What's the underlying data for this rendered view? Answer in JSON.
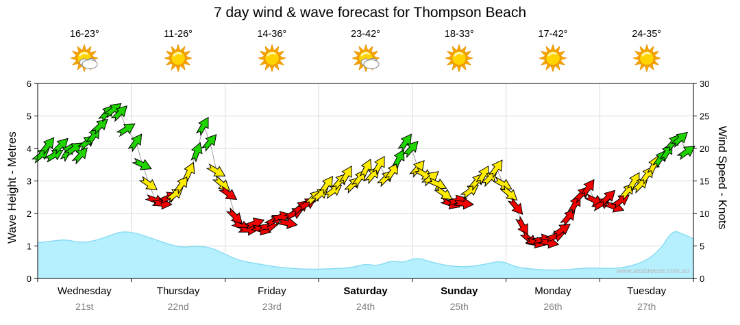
{
  "title": "7 day wind & wave forecast for Thompson Beach",
  "watermark": "www.seabreeze.com.au",
  "days": [
    {
      "name": "Wednesday",
      "date": "21st",
      "temp": "16-23°",
      "icon": "partly-cloudy",
      "bold": false
    },
    {
      "name": "Thursday",
      "date": "22nd",
      "temp": "11-26°",
      "icon": "sunny",
      "bold": false
    },
    {
      "name": "Friday",
      "date": "23rd",
      "temp": "14-36°",
      "icon": "sunny",
      "bold": false
    },
    {
      "name": "Saturday",
      "date": "24th",
      "temp": "23-42°",
      "icon": "partly-cloudy",
      "bold": true
    },
    {
      "name": "Sunday",
      "date": "25th",
      "temp": "18-33°",
      "icon": "sunny",
      "bold": true
    },
    {
      "name": "Monday",
      "date": "26th",
      "temp": "17-42°",
      "icon": "sunny",
      "bold": false
    },
    {
      "name": "Tuesday",
      "date": "27th",
      "temp": "24-35°",
      "icon": "sunny",
      "bold": false
    }
  ],
  "axes": {
    "left": {
      "title": "Wave Height - Metres",
      "ticks": [
        0,
        1,
        2,
        3,
        4,
        5,
        6
      ],
      "max": 6
    },
    "right": {
      "title": "Wind Speed - Knots",
      "ticks": [
        0,
        5,
        10,
        15,
        20,
        25,
        30
      ],
      "max": 30
    }
  },
  "colors": {
    "grid": "#d9d9d9",
    "frame": "#000000",
    "connector": "#9c9c9c",
    "wave_fill": "#b6f0fe",
    "wave_stroke": "#8adcf2",
    "arrow": {
      "g": "#1fd400",
      "y": "#ffec00",
      "r": "#f20000"
    },
    "date_text": "#7e7e7e",
    "watermark": "#b9b9b9"
  },
  "chart_data": {
    "type": "wind-wave-forecast",
    "title": "7 day wind & wave forecast for Thompson Beach",
    "x_axis": {
      "range_days": [
        0,
        7
      ],
      "day_labels": [
        "Wednesday 21st",
        "Thursday 22nd",
        "Friday 23rd",
        "Saturday 24th",
        "Sunday 25th",
        "Monday 26th",
        "Tuesday 27th"
      ]
    },
    "left_axis": {
      "label": "Wave Height - Metres",
      "range": [
        0,
        6
      ],
      "unit": "m"
    },
    "right_axis": {
      "label": "Wind Speed - Knots",
      "range": [
        0,
        30
      ],
      "unit": "knots"
    },
    "grid": true,
    "wind_arrows": {
      "unit": "knots",
      "point_format": [
        "day_fraction",
        "knots",
        "color_code",
        "arrow_rotation_deg"
      ],
      "color_codes": {
        "g": "green (strong wind)",
        "y": "yellow (moderate wind)",
        "r": "red (light wind)"
      },
      "points": [
        [
          0.04,
          19,
          "g",
          -38
        ],
        [
          0.11,
          20.5,
          "g",
          -52
        ],
        [
          0.18,
          19,
          "g",
          -30
        ],
        [
          0.25,
          20.5,
          "g",
          -45
        ],
        [
          0.32,
          19.5,
          "g",
          -60
        ],
        [
          0.39,
          20,
          "g",
          -35
        ],
        [
          0.46,
          19,
          "g",
          -48
        ],
        [
          0.53,
          21,
          "g",
          -40
        ],
        [
          0.6,
          22,
          "g",
          -55
        ],
        [
          0.67,
          23.5,
          "g",
          -42
        ],
        [
          0.74,
          25.5,
          "g",
          -50
        ],
        [
          0.81,
          26,
          "g",
          -38
        ],
        [
          0.88,
          25.5,
          "g",
          -45
        ],
        [
          0.95,
          23,
          "g",
          -32
        ],
        [
          1.05,
          21,
          "g",
          -55
        ],
        [
          1.12,
          17.5,
          "g",
          25
        ],
        [
          1.19,
          14.5,
          "y",
          35
        ],
        [
          1.26,
          12,
          "r",
          20
        ],
        [
          1.33,
          11.5,
          "r",
          5
        ],
        [
          1.4,
          12.5,
          "r",
          -25
        ],
        [
          1.47,
          13,
          "y",
          -40
        ],
        [
          1.54,
          14.5,
          "y",
          -55
        ],
        [
          1.62,
          16.5,
          "y",
          -65
        ],
        [
          1.7,
          19.5,
          "g",
          -70
        ],
        [
          1.77,
          23.5,
          "g",
          -60
        ],
        [
          1.84,
          21,
          "g",
          -50
        ],
        [
          1.91,
          16.5,
          "y",
          30
        ],
        [
          1.97,
          14.5,
          "y",
          40
        ],
        [
          2.04,
          13,
          "r",
          35
        ],
        [
          2.11,
          9.5,
          "r",
          45
        ],
        [
          2.18,
          8,
          "r",
          20
        ],
        [
          2.25,
          7.5,
          "r",
          0
        ],
        [
          2.32,
          8.5,
          "r",
          -20
        ],
        [
          2.39,
          7.5,
          "r",
          15
        ],
        [
          2.46,
          8,
          "r",
          -10
        ],
        [
          2.53,
          9,
          "r",
          -30
        ],
        [
          2.6,
          9.5,
          "r",
          -15
        ],
        [
          2.67,
          8.5,
          "r",
          10
        ],
        [
          2.74,
          10,
          "r",
          -25
        ],
        [
          2.81,
          11,
          "r",
          -40
        ],
        [
          2.88,
          11.5,
          "r",
          -30
        ],
        [
          2.95,
          12.5,
          "y",
          -45
        ],
        [
          3.02,
          13,
          "y",
          -40
        ],
        [
          3.09,
          14.5,
          "y",
          -55
        ],
        [
          3.16,
          13.5,
          "y",
          -35
        ],
        [
          3.23,
          15,
          "y",
          -50
        ],
        [
          3.3,
          16,
          "y",
          -60
        ],
        [
          3.37,
          14.5,
          "y",
          -45
        ],
        [
          3.44,
          15.5,
          "y",
          -55
        ],
        [
          3.51,
          17,
          "y",
          -65
        ],
        [
          3.58,
          16,
          "y",
          -50
        ],
        [
          3.65,
          17.5,
          "y",
          -60
        ],
        [
          3.72,
          15.5,
          "y",
          -45
        ],
        [
          3.79,
          16.5,
          "y",
          -55
        ],
        [
          3.86,
          18.5,
          "g",
          -62
        ],
        [
          3.93,
          21,
          "g",
          -55
        ],
        [
          3.99,
          20,
          "g",
          -48
        ],
        [
          4.06,
          17,
          "y",
          -50
        ],
        [
          4.13,
          16,
          "y",
          30
        ],
        [
          4.2,
          15.5,
          "y",
          -40
        ],
        [
          4.27,
          14.5,
          "y",
          25
        ],
        [
          4.34,
          13,
          "y",
          35
        ],
        [
          4.41,
          11.5,
          "r",
          20
        ],
        [
          4.48,
          12,
          "r",
          -15
        ],
        [
          4.55,
          11.5,
          "r",
          5
        ],
        [
          4.62,
          13.5,
          "y",
          -35
        ],
        [
          4.69,
          15,
          "y",
          -50
        ],
        [
          4.76,
          16,
          "y",
          -60
        ],
        [
          4.83,
          15.5,
          "y",
          -45
        ],
        [
          4.9,
          17,
          "y",
          -55
        ],
        [
          4.97,
          14.5,
          "y",
          30
        ],
        [
          5.04,
          13,
          "y",
          40
        ],
        [
          5.11,
          11,
          "r",
          50
        ],
        [
          5.18,
          8,
          "r",
          60
        ],
        [
          5.25,
          6,
          "r",
          40
        ],
        [
          5.32,
          5.5,
          "r",
          15
        ],
        [
          5.39,
          6,
          "r",
          -10
        ],
        [
          5.46,
          5.5,
          "r",
          10
        ],
        [
          5.53,
          6.5,
          "r",
          -20
        ],
        [
          5.6,
          7.5,
          "r",
          -35
        ],
        [
          5.67,
          9.5,
          "r",
          -50
        ],
        [
          5.74,
          11.5,
          "r",
          -60
        ],
        [
          5.81,
          13,
          "r",
          -45
        ],
        [
          5.88,
          14,
          "r",
          -55
        ],
        [
          5.95,
          12,
          "r",
          25
        ],
        [
          6.02,
          11.5,
          "r",
          -30
        ],
        [
          6.09,
          12.5,
          "r",
          -45
        ],
        [
          6.16,
          11,
          "r",
          20
        ],
        [
          6.23,
          12,
          "r",
          -35
        ],
        [
          6.3,
          13.5,
          "y",
          -50
        ],
        [
          6.37,
          15,
          "y",
          -60
        ],
        [
          6.44,
          14.5,
          "y",
          -45
        ],
        [
          6.51,
          16,
          "y",
          -55
        ],
        [
          6.58,
          17.5,
          "y",
          -65
        ],
        [
          6.65,
          18.5,
          "g",
          -55
        ],
        [
          6.72,
          19.5,
          "g",
          -60
        ],
        [
          6.79,
          21,
          "g",
          -50
        ],
        [
          6.86,
          21.5,
          "g",
          -42
        ],
        [
          6.93,
          19.5,
          "g",
          -35
        ]
      ]
    },
    "wave_area": {
      "unit": "metres",
      "point_format": [
        "day_fraction",
        "metres"
      ],
      "points": [
        [
          0,
          1.1
        ],
        [
          0.15,
          1.15
        ],
        [
          0.3,
          1.2
        ],
        [
          0.45,
          1.1
        ],
        [
          0.6,
          1.15
        ],
        [
          0.75,
          1.3
        ],
        [
          0.9,
          1.45
        ],
        [
          1.05,
          1.4
        ],
        [
          1.2,
          1.25
        ],
        [
          1.4,
          1.05
        ],
        [
          1.55,
          0.95
        ],
        [
          1.7,
          1.0
        ],
        [
          1.85,
          0.95
        ],
        [
          2.0,
          0.75
        ],
        [
          2.15,
          0.55
        ],
        [
          2.35,
          0.45
        ],
        [
          2.55,
          0.35
        ],
        [
          2.75,
          0.3
        ],
        [
          2.95,
          0.28
        ],
        [
          3.15,
          0.3
        ],
        [
          3.35,
          0.33
        ],
        [
          3.5,
          0.45
        ],
        [
          3.62,
          0.38
        ],
        [
          3.78,
          0.55
        ],
        [
          3.9,
          0.48
        ],
        [
          4.05,
          0.65
        ],
        [
          4.2,
          0.5
        ],
        [
          4.4,
          0.38
        ],
        [
          4.6,
          0.35
        ],
        [
          4.8,
          0.45
        ],
        [
          4.95,
          0.55
        ],
        [
          5.1,
          0.35
        ],
        [
          5.3,
          0.28
        ],
        [
          5.5,
          0.25
        ],
        [
          5.7,
          0.28
        ],
        [
          5.9,
          0.33
        ],
        [
          6.1,
          0.3
        ],
        [
          6.3,
          0.35
        ],
        [
          6.5,
          0.55
        ],
        [
          6.65,
          0.9
        ],
        [
          6.78,
          1.5
        ],
        [
          6.9,
          1.35
        ],
        [
          7,
          1.22
        ]
      ]
    }
  }
}
